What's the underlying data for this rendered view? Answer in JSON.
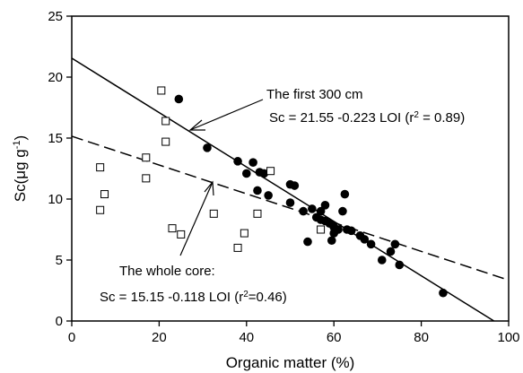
{
  "chart_data": {
    "type": "scatter",
    "title": "",
    "xlabel": "Organic matter (%)",
    "ylabel_main": "Sc(",
    "ylabel_mu": "μ",
    "ylabel_unit": "g g",
    "ylabel_exp": "-1",
    "ylabel_close": ")",
    "xlim": [
      0,
      100
    ],
    "ylim": [
      0,
      25
    ],
    "xticks": [
      0,
      20,
      40,
      60,
      80,
      100
    ],
    "yticks": [
      0,
      5,
      10,
      15,
      20,
      25
    ],
    "grid": false,
    "series": [
      {
        "marker": "filled-circle",
        "points": [
          [
            24.5,
            18.2
          ],
          [
            31,
            14.2
          ],
          [
            38,
            13.1
          ],
          [
            40,
            12.1
          ],
          [
            41.5,
            13
          ],
          [
            42.5,
            10.7
          ],
          [
            43,
            12.2
          ],
          [
            44,
            12.1
          ],
          [
            45,
            10.3
          ],
          [
            50,
            11.2
          ],
          [
            50,
            9.7
          ],
          [
            51,
            11.1
          ],
          [
            53,
            9.0
          ],
          [
            54,
            6.5
          ],
          [
            55,
            9.2
          ],
          [
            56,
            8.5
          ],
          [
            57,
            9.0
          ],
          [
            57,
            8.3
          ],
          [
            58,
            9.5
          ],
          [
            58,
            8.2
          ],
          [
            59,
            8.0
          ],
          [
            59.5,
            6.6
          ],
          [
            60,
            7.7
          ],
          [
            60,
            7.2
          ],
          [
            61,
            7.5
          ],
          [
            62,
            9.0
          ],
          [
            62.5,
            10.4
          ],
          [
            63,
            7.5
          ],
          [
            64,
            7.4
          ],
          [
            66,
            7.0
          ],
          [
            67,
            6.7
          ],
          [
            68.5,
            6.3
          ],
          [
            71,
            5.0
          ],
          [
            73,
            5.7
          ],
          [
            74,
            6.3
          ],
          [
            75,
            4.6
          ],
          [
            85,
            2.3
          ]
        ]
      },
      {
        "marker": "open-square",
        "points": [
          [
            6.5,
            12.6
          ],
          [
            6.5,
            9.1
          ],
          [
            7.5,
            10.4
          ],
          [
            17,
            13.4
          ],
          [
            17,
            11.7
          ],
          [
            20.5,
            18.9
          ],
          [
            21.5,
            16.4
          ],
          [
            21.5,
            14.7
          ],
          [
            23,
            7.6
          ],
          [
            25,
            7.1
          ],
          [
            32.5,
            8.8
          ],
          [
            38,
            6.0
          ],
          [
            39.5,
            7.2
          ],
          [
            42.5,
            8.8
          ],
          [
            45.5,
            12.3
          ],
          [
            57,
            7.5
          ]
        ]
      }
    ],
    "lines": [
      {
        "style": "solid",
        "intercept": 21.55,
        "slope": -0.223
      },
      {
        "style": "dashed",
        "intercept": 15.15,
        "slope": -0.118
      }
    ],
    "annotations": {
      "first": {
        "line1": "The first 300 cm",
        "line2_pre": "Sc = 21.55 -0.223 LOI (r",
        "line2_sup": "2",
        "line2_post": " = 0.89)"
      },
      "whole": {
        "line1": "The whole core:",
        "line2_pre": "Sc = 15.15 -0.118 LOI (r",
        "line2_sup": "2",
        "line2_post": "=0.46)"
      }
    }
  }
}
